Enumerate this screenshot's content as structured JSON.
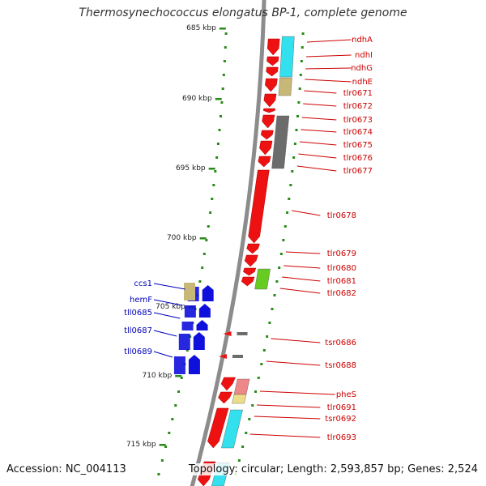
{
  "title": "Thermosynechococcus elongatus BP-1, complete genome",
  "footer": {
    "accession": "Accession: NC_004113",
    "topology": "Topology: circular; Length: 2,593,857 bp; Genes: 2,524"
  },
  "colors": {
    "backbone": "#8c8c8c",
    "tick": "#2a8a1a",
    "forward_gene": "#ee1111",
    "reverse_gene": "#1010dd",
    "forward_label": "#cc0000",
    "reverse_label": "#0000bb",
    "cyan": "#33e0ee",
    "khaki": "#c8b878",
    "gray": "#6c6c6c",
    "lime": "#66cc22",
    "pink": "#ee8888",
    "pale_yellow": "#eedd88"
  },
  "kbp_labels": [
    "685 kbp",
    "690 kbp",
    "695 kbp",
    "700 kbp",
    "705 kbp",
    "710 kbp",
    "715 kbp"
  ],
  "forward_genes": [
    "ndhA",
    "ndhI",
    "ndhG",
    "ndhE",
    "tlr0671",
    "tlr0672",
    "tlr0673",
    "tlr0674",
    "tlr0675",
    "tlr0676",
    "tlr0677",
    "tlr0678",
    "tlr0679",
    "tlr0680",
    "tlr0681",
    "tlr0682",
    "tsr0686",
    "tsr0688",
    "pheS",
    "tlr0691",
    "tsr0692",
    "tlr0693"
  ],
  "reverse_genes": [
    "ccs1",
    "hemF",
    "tll0685",
    "tll0687",
    "tll0689"
  ]
}
